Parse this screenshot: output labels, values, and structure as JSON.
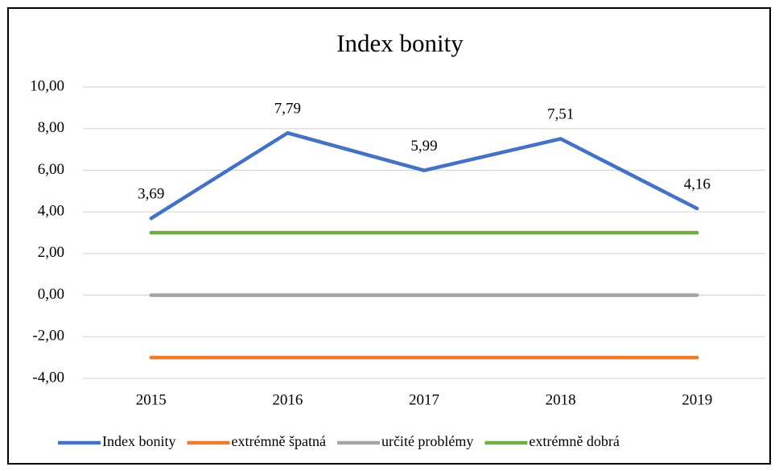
{
  "chart_data": {
    "type": "line",
    "title": "Index bonity",
    "categories": [
      "2015",
      "2016",
      "2017",
      "2018",
      "2019"
    ],
    "series": [
      {
        "name": "Index bonity",
        "color": "#4472c4",
        "values": [
          3.69,
          7.79,
          5.99,
          7.51,
          4.16
        ],
        "value_labels": [
          "3,69",
          "7,79",
          "5,99",
          "7,51",
          "4,16"
        ]
      },
      {
        "name": "extrémně špatná",
        "color": "#ed7d31",
        "values": [
          -3,
          -3,
          -3,
          -3,
          -3
        ]
      },
      {
        "name": "určité problémy",
        "color": "#a5a5a5",
        "values": [
          0,
          0,
          0,
          0,
          0
        ]
      },
      {
        "name": "extrémně dobrá",
        "color": "#70ad47",
        "values": [
          3,
          3,
          3,
          3,
          3
        ]
      }
    ],
    "ylim": [
      -4,
      10
    ],
    "yticks": [
      {
        "value": -4,
        "label": "-4,00"
      },
      {
        "value": -2,
        "label": "-2,00"
      },
      {
        "value": 0,
        "label": "0,00"
      },
      {
        "value": 2,
        "label": "2,00"
      },
      {
        "value": 4,
        "label": "4,00"
      },
      {
        "value": 6,
        "label": "6,00"
      },
      {
        "value": 8,
        "label": "8,00"
      },
      {
        "value": 10,
        "label": "10,00"
      }
    ],
    "grid": true,
    "legend": "bottom"
  }
}
